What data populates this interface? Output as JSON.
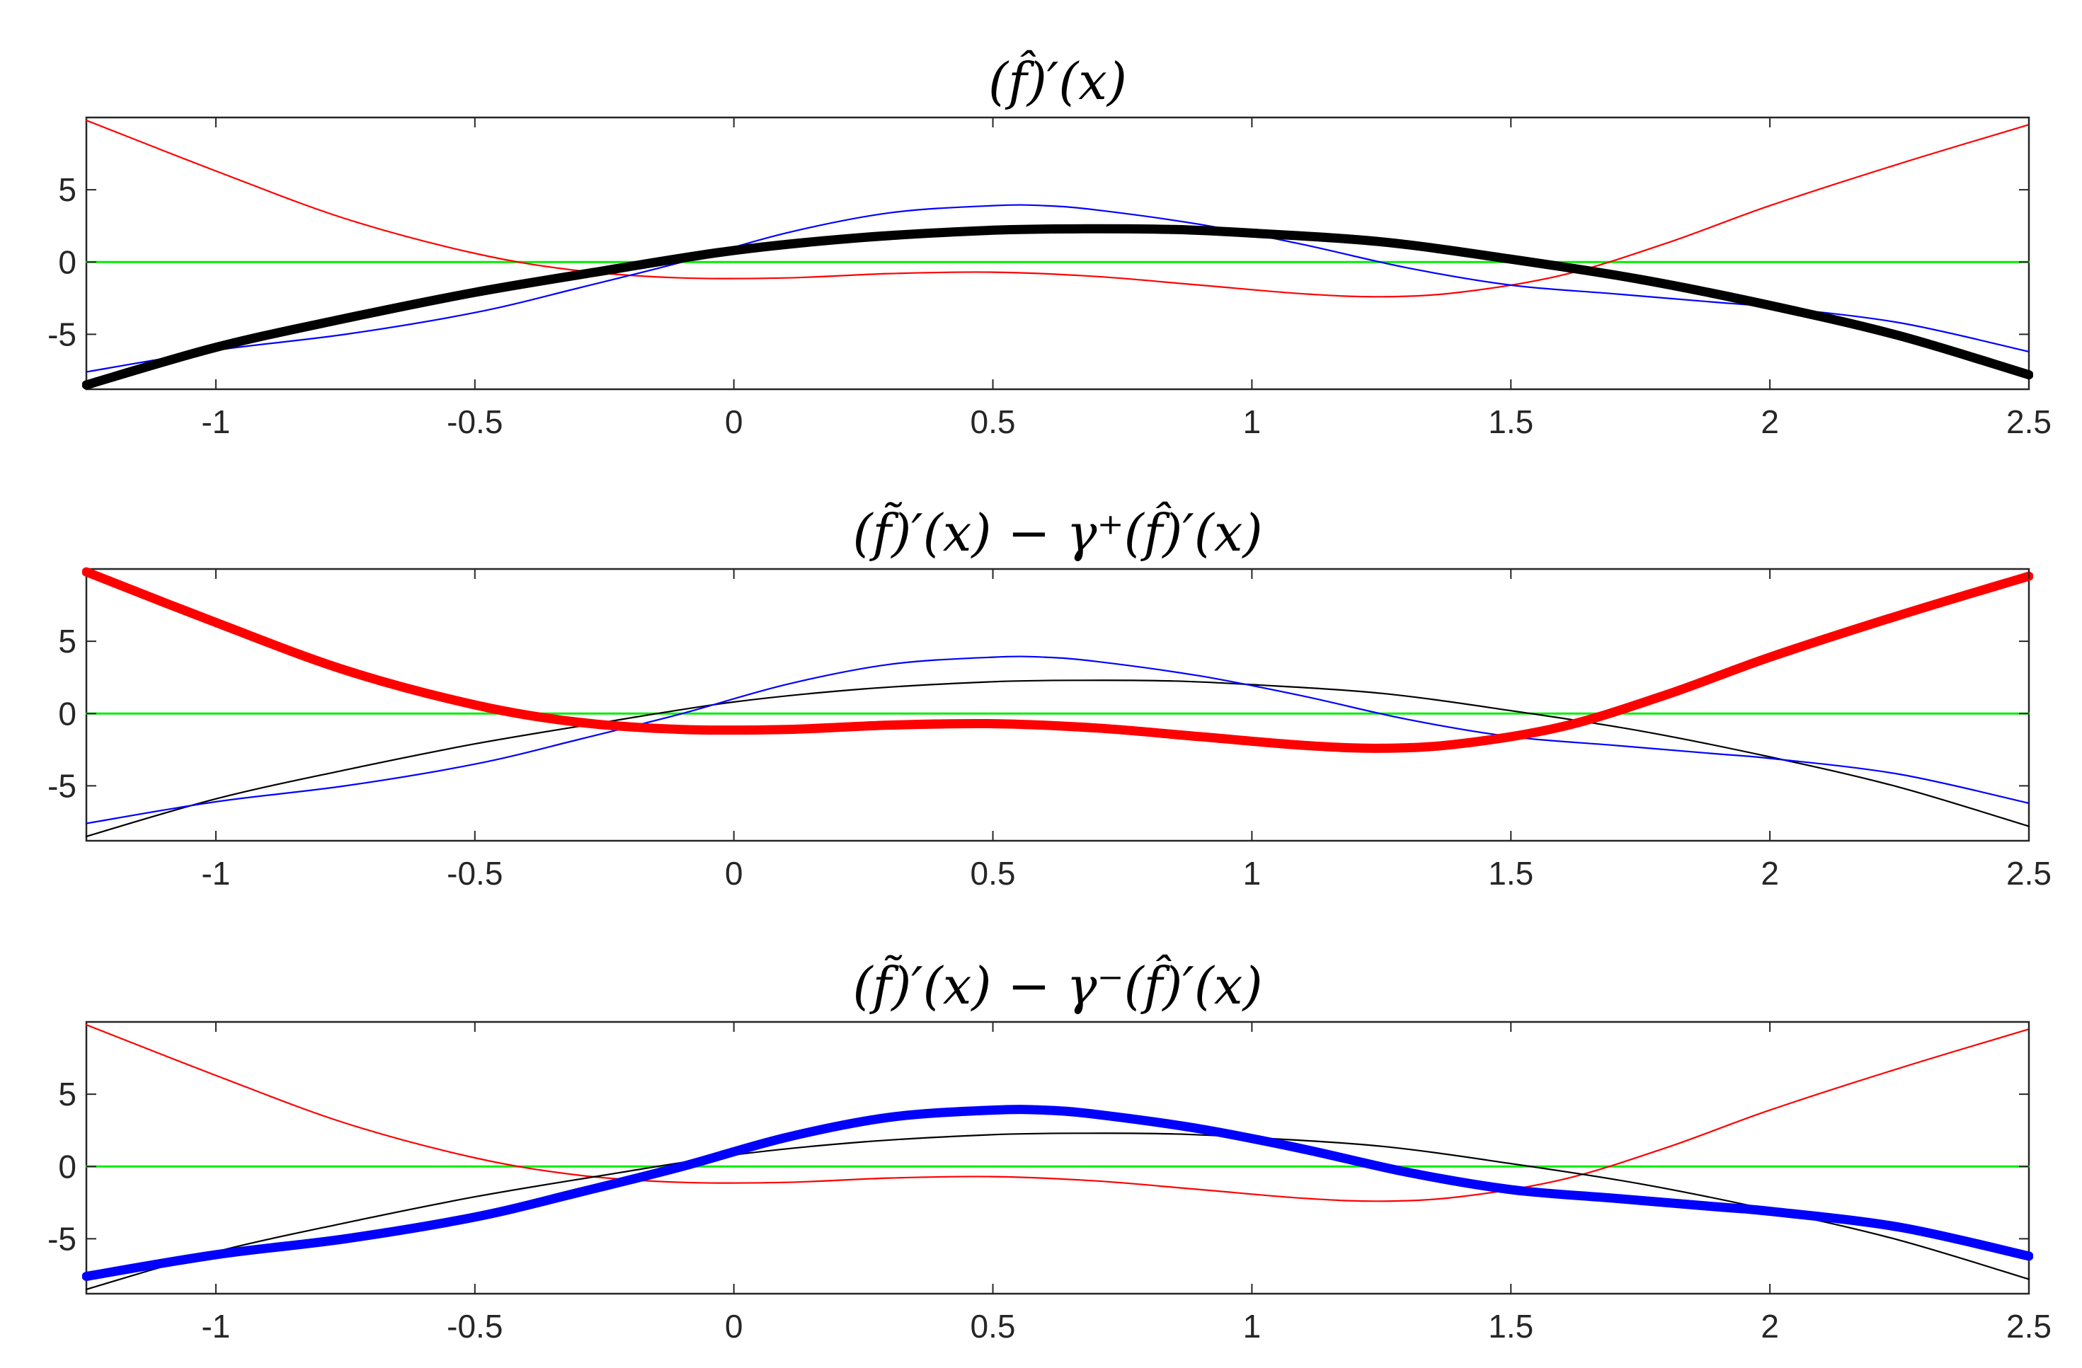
{
  "chart_data": [
    {
      "type": "line",
      "title": "(f̂)′(x)",
      "xlim": [
        -1.25,
        2.5
      ],
      "ylim": [
        -8.8,
        10
      ],
      "x_ticks": [
        -1,
        -0.5,
        0,
        0.5,
        1,
        1.5,
        2,
        2.5
      ],
      "x_tick_labels": [
        "-1",
        "-0.5",
        "0",
        "0.5",
        "1",
        "1.5",
        "2",
        "2.5"
      ],
      "y_ticks": [
        -5,
        0,
        5
      ],
      "y_tick_labels": [
        "-5",
        "0",
        "5"
      ],
      "grid": false,
      "highlighted": "black",
      "series": [
        {
          "color": "#00ee00",
          "x": [
            -1.25,
            2.5
          ],
          "y": [
            0,
            0
          ]
        },
        {
          "color": "#ff0000",
          "x": [
            -1.25,
            -1.0,
            -0.75,
            -0.5,
            -0.3,
            -0.1,
            0.1,
            0.3,
            0.5,
            0.7,
            0.9,
            1.1,
            1.25,
            1.4,
            1.6,
            1.8,
            2.0,
            2.25,
            2.5
          ],
          "y": [
            9.8,
            6.3,
            3.0,
            0.6,
            -0.6,
            -1.1,
            -1.1,
            -0.8,
            -0.7,
            -1.0,
            -1.6,
            -2.2,
            -2.4,
            -2.1,
            -0.9,
            1.3,
            3.9,
            6.8,
            9.5
          ]
        },
        {
          "color": "#0000ff",
          "x": [
            -1.25,
            -1.0,
            -0.75,
            -0.5,
            -0.3,
            -0.1,
            0.1,
            0.3,
            0.5,
            0.6,
            0.7,
            0.9,
            1.1,
            1.3,
            1.5,
            1.7,
            1.9,
            2.0,
            2.25,
            2.5
          ],
          "y": [
            -7.6,
            -6.1,
            -5.0,
            -3.5,
            -1.8,
            0.0,
            2.0,
            3.4,
            3.9,
            3.9,
            3.6,
            2.6,
            1.2,
            -0.4,
            -1.6,
            -2.2,
            -2.8,
            -3.1,
            -4.2,
            -6.2
          ]
        },
        {
          "color": "#000000",
          "x": [
            -1.25,
            -1.0,
            -0.75,
            -0.5,
            -0.25,
            0.0,
            0.25,
            0.5,
            0.675,
            0.85,
            1.0,
            1.25,
            1.5,
            1.75,
            2.0,
            2.25,
            2.5
          ],
          "y": [
            -8.5,
            -5.9,
            -3.9,
            -2.1,
            -0.6,
            0.8,
            1.7,
            2.2,
            2.3,
            2.25,
            2.0,
            1.4,
            0.2,
            -1.2,
            -3.0,
            -5.1,
            -7.8
          ]
        }
      ]
    },
    {
      "type": "line",
      "title": "(f̃)′(x) − γ⁺(f̂)′(x)",
      "xlim": [
        -1.25,
        2.5
      ],
      "ylim": [
        -8.8,
        10
      ],
      "x_ticks": [
        -1,
        -0.5,
        0,
        0.5,
        1,
        1.5,
        2,
        2.5
      ],
      "x_tick_labels": [
        "-1",
        "-0.5",
        "0",
        "0.5",
        "1",
        "1.5",
        "2",
        "2.5"
      ],
      "y_ticks": [
        -5,
        0,
        5
      ],
      "y_tick_labels": [
        "-5",
        "0",
        "5"
      ],
      "grid": false,
      "highlighted": "red",
      "series": [
        {
          "color": "#00ee00",
          "x": [
            -1.25,
            2.5
          ],
          "y": [
            0,
            0
          ]
        },
        {
          "color": "#000000",
          "x": [
            -1.25,
            -1.0,
            -0.75,
            -0.5,
            -0.25,
            0.0,
            0.25,
            0.5,
            0.675,
            0.85,
            1.0,
            1.25,
            1.5,
            1.75,
            2.0,
            2.25,
            2.5
          ],
          "y": [
            -8.5,
            -5.9,
            -3.9,
            -2.1,
            -0.6,
            0.8,
            1.7,
            2.2,
            2.3,
            2.25,
            2.0,
            1.4,
            0.2,
            -1.2,
            -3.0,
            -5.1,
            -7.8
          ]
        },
        {
          "color": "#0000ff",
          "x": [
            -1.25,
            -1.0,
            -0.75,
            -0.5,
            -0.3,
            -0.1,
            0.1,
            0.3,
            0.5,
            0.6,
            0.7,
            0.9,
            1.1,
            1.3,
            1.5,
            1.7,
            1.9,
            2.0,
            2.25,
            2.5
          ],
          "y": [
            -7.6,
            -6.1,
            -5.0,
            -3.5,
            -1.8,
            0.0,
            2.0,
            3.4,
            3.9,
            3.9,
            3.6,
            2.6,
            1.2,
            -0.4,
            -1.6,
            -2.2,
            -2.8,
            -3.1,
            -4.2,
            -6.2
          ]
        },
        {
          "color": "#ff0000",
          "x": [
            -1.25,
            -1.0,
            -0.75,
            -0.5,
            -0.3,
            -0.1,
            0.1,
            0.3,
            0.5,
            0.7,
            0.9,
            1.1,
            1.25,
            1.4,
            1.6,
            1.8,
            2.0,
            2.25,
            2.5
          ],
          "y": [
            9.8,
            6.3,
            3.0,
            0.6,
            -0.6,
            -1.1,
            -1.1,
            -0.8,
            -0.7,
            -1.0,
            -1.6,
            -2.2,
            -2.4,
            -2.1,
            -0.9,
            1.3,
            3.9,
            6.8,
            9.5
          ]
        }
      ]
    },
    {
      "type": "line",
      "title": "(f̃)′(x) − γ⁻(f̂)′(x)",
      "xlim": [
        -1.25,
        2.5
      ],
      "ylim": [
        -8.8,
        10
      ],
      "x_ticks": [
        -1,
        -0.5,
        0,
        0.5,
        1,
        1.5,
        2,
        2.5
      ],
      "x_tick_labels": [
        "-1",
        "-0.5",
        "0",
        "0.5",
        "1",
        "1.5",
        "2",
        "2.5"
      ],
      "y_ticks": [
        -5,
        0,
        5
      ],
      "y_tick_labels": [
        "-5",
        "0",
        "5"
      ],
      "grid": false,
      "highlighted": "blue",
      "series": [
        {
          "color": "#00ee00",
          "x": [
            -1.25,
            2.5
          ],
          "y": [
            0,
            0
          ]
        },
        {
          "color": "#ff0000",
          "x": [
            -1.25,
            -1.0,
            -0.75,
            -0.5,
            -0.3,
            -0.1,
            0.1,
            0.3,
            0.5,
            0.7,
            0.9,
            1.1,
            1.25,
            1.4,
            1.6,
            1.8,
            2.0,
            2.25,
            2.5
          ],
          "y": [
            9.8,
            6.3,
            3.0,
            0.6,
            -0.6,
            -1.1,
            -1.1,
            -0.8,
            -0.7,
            -1.0,
            -1.6,
            -2.2,
            -2.4,
            -2.1,
            -0.9,
            1.3,
            3.9,
            6.8,
            9.5
          ]
        },
        {
          "color": "#000000",
          "x": [
            -1.25,
            -1.0,
            -0.75,
            -0.5,
            -0.25,
            0.0,
            0.25,
            0.5,
            0.675,
            0.85,
            1.0,
            1.25,
            1.5,
            1.75,
            2.0,
            2.25,
            2.5
          ],
          "y": [
            -8.5,
            -5.9,
            -3.9,
            -2.1,
            -0.6,
            0.8,
            1.7,
            2.2,
            2.3,
            2.25,
            2.0,
            1.4,
            0.2,
            -1.2,
            -3.0,
            -5.1,
            -7.8
          ]
        },
        {
          "color": "#0000ff",
          "x": [
            -1.25,
            -1.0,
            -0.75,
            -0.5,
            -0.3,
            -0.1,
            0.1,
            0.3,
            0.5,
            0.6,
            0.7,
            0.9,
            1.1,
            1.3,
            1.5,
            1.7,
            1.9,
            2.0,
            2.25,
            2.5
          ],
          "y": [
            -7.6,
            -6.1,
            -5.0,
            -3.5,
            -1.8,
            0.0,
            2.0,
            3.4,
            3.9,
            3.9,
            3.6,
            2.6,
            1.2,
            -0.4,
            -1.6,
            -2.2,
            -2.8,
            -3.1,
            -4.2,
            -6.2
          ]
        }
      ]
    }
  ]
}
